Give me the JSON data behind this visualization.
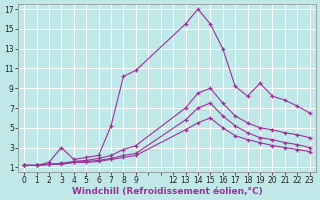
{
  "background_color": "#c0e8e8",
  "line_color": "#993399",
  "grid_color": "#ffffff",
  "xlim": [
    -0.5,
    23.5
  ],
  "ylim": [
    0.5,
    17.5
  ],
  "xticks": [
    0,
    1,
    2,
    3,
    4,
    5,
    6,
    7,
    8,
    9,
    12,
    13,
    14,
    15,
    16,
    17,
    18,
    19,
    20,
    21,
    22,
    23
  ],
  "yticks": [
    1,
    3,
    5,
    7,
    9,
    11,
    13,
    15,
    17
  ],
  "lines": [
    {
      "x": [
        0,
        1,
        2,
        3,
        4,
        5,
        6,
        7,
        8,
        9,
        13,
        14,
        15,
        16,
        17,
        18,
        19,
        20,
        21,
        22,
        23
      ],
      "y": [
        1.2,
        1.2,
        1.5,
        3.0,
        1.8,
        2.0,
        2.2,
        5.2,
        10.2,
        10.8,
        15.5,
        17.0,
        15.5,
        13.0,
        9.2,
        8.2,
        9.5,
        8.2,
        7.8,
        7.2,
        6.5
      ]
    },
    {
      "x": [
        0,
        1,
        2,
        3,
        4,
        5,
        6,
        7,
        8,
        9,
        13,
        14,
        15,
        16,
        17,
        18,
        19,
        20,
        21,
        22,
        23
      ],
      "y": [
        1.2,
        1.2,
        1.3,
        1.4,
        1.6,
        1.7,
        1.9,
        2.2,
        2.8,
        3.2,
        7.0,
        8.5,
        9.0,
        7.5,
        6.2,
        5.5,
        5.0,
        4.8,
        4.5,
        4.3,
        4.0
      ]
    },
    {
      "x": [
        0,
        1,
        2,
        3,
        4,
        5,
        6,
        7,
        8,
        9,
        13,
        14,
        15,
        16,
        17,
        18,
        19,
        20,
        21,
        22,
        23
      ],
      "y": [
        1.2,
        1.2,
        1.3,
        1.4,
        1.5,
        1.6,
        1.7,
        1.9,
        2.2,
        2.4,
        5.8,
        7.0,
        7.5,
        6.2,
        5.2,
        4.5,
        4.0,
        3.8,
        3.5,
        3.3,
        3.0
      ]
    },
    {
      "x": [
        0,
        1,
        2,
        3,
        4,
        5,
        6,
        7,
        8,
        9,
        13,
        14,
        15,
        16,
        17,
        18,
        19,
        20,
        21,
        22,
        23
      ],
      "y": [
        1.2,
        1.2,
        1.3,
        1.3,
        1.5,
        1.5,
        1.6,
        1.8,
        2.0,
        2.2,
        4.8,
        5.5,
        6.0,
        5.0,
        4.2,
        3.8,
        3.5,
        3.2,
        3.0,
        2.8,
        2.6
      ]
    }
  ],
  "tick_fontsize": 5.5,
  "xlabel_fontsize": 6.5,
  "xlabel": "Windchill (Refroidissement éolien,°C)"
}
